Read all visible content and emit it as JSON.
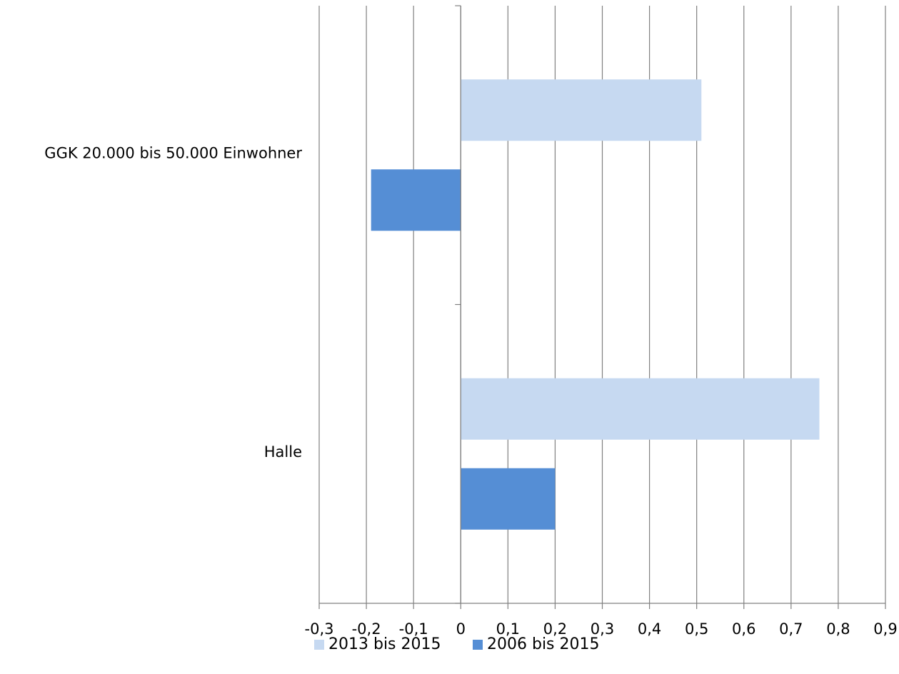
{
  "chart_data": {
    "type": "bar",
    "orientation": "horizontal",
    "categories": [
      "GGK 20.000 bis 50.000 Einwohner",
      "Halle"
    ],
    "series": [
      {
        "name": "2013 bis 2015",
        "color": "#c6d9f1",
        "values": [
          0.51,
          0.76
        ]
      },
      {
        "name": "2006 bis 2015",
        "color": "#558ed5",
        "values": [
          -0.19,
          0.2
        ]
      }
    ],
    "xlim": [
      -0.3,
      0.9
    ],
    "xticks": [
      -0.3,
      -0.2,
      -0.1,
      0,
      0.1,
      0.2,
      0.3,
      0.4,
      0.5,
      0.6,
      0.7,
      0.8,
      0.9
    ],
    "xtick_labels": [
      "-0,3",
      "-0,2",
      "-0,1",
      "0",
      "0,1",
      "0,2",
      "0,3",
      "0,4",
      "0,5",
      "0,6",
      "0,7",
      "0,8",
      "0,9"
    ],
    "grid": true,
    "legend_position": "bottom",
    "gridline_color": "#808080"
  }
}
